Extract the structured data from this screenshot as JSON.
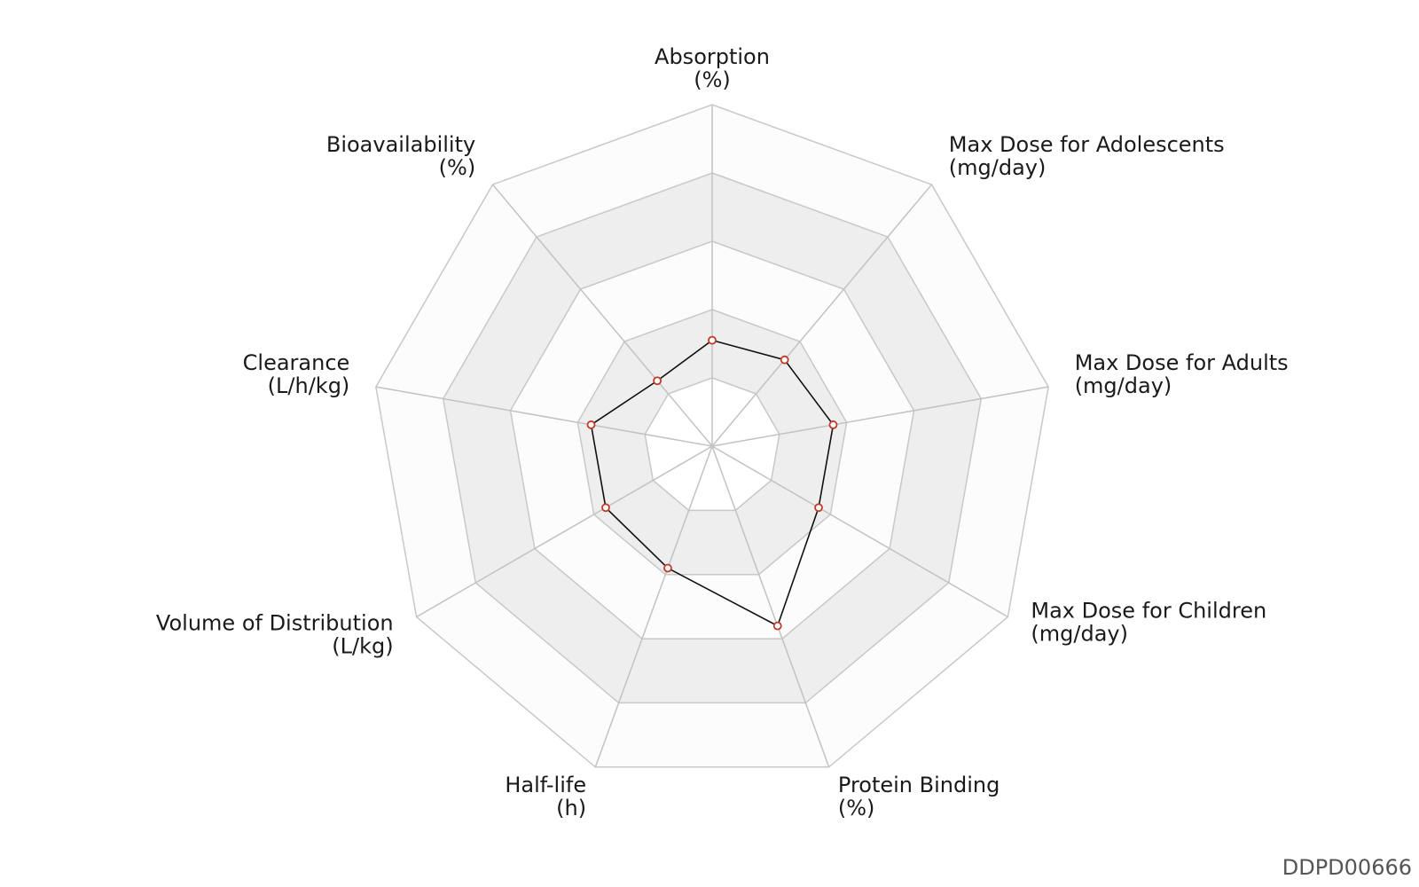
{
  "chart_data": {
    "type": "radar",
    "scale": [
      0,
      1
    ],
    "rings": 5,
    "band_colors": [
      "#ffffff",
      "#eeeeee",
      "#fcfcfc",
      "#eeeeee",
      "#fcfcfc"
    ],
    "grid": true,
    "axes": [
      {
        "name": "Absorption",
        "unit": "(%)"
      },
      {
        "name": "Max Dose for Adolescents",
        "unit": "(mg/day)"
      },
      {
        "name": "Max Dose for Adults",
        "unit": "(mg/day)"
      },
      {
        "name": "Max Dose for Children",
        "unit": "(mg/day)"
      },
      {
        "name": "Protein Binding",
        "unit": "(%)"
      },
      {
        "name": "Half-life",
        "unit": "(h)"
      },
      {
        "name": "Volume of Distribution",
        "unit": "(L/kg)"
      },
      {
        "name": "Clearance",
        "unit": "(L/h/kg)"
      },
      {
        "name": "Bioavailability",
        "unit": "(%)"
      }
    ],
    "series": [
      {
        "values": [
          0.31,
          0.33,
          0.36,
          0.36,
          0.56,
          0.38,
          0.36,
          0.36,
          0.25
        ],
        "line_color": "#111111",
        "marker_color": "#c0392b"
      }
    ]
  },
  "watermark": "DDPD00666"
}
